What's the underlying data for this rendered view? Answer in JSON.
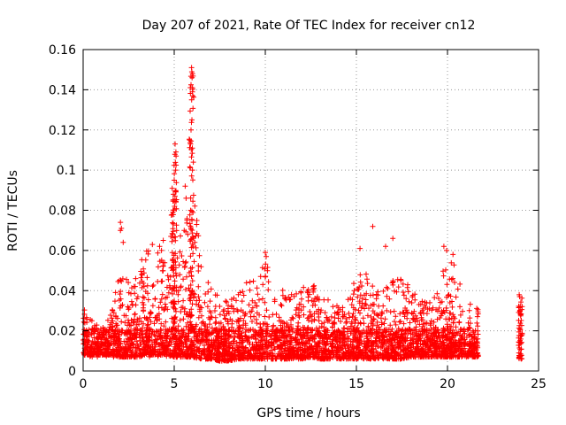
{
  "chart_data": {
    "type": "scatter",
    "title": "Day 207 of 2021, Rate Of TEC Index for receiver cn12",
    "xlabel": "GPS time / hours",
    "ylabel": "ROTI / TECUs",
    "xlim": [
      0,
      25
    ],
    "ylim": [
      0,
      0.16
    ],
    "grid": true,
    "marker": "+",
    "color": "#ff0000",
    "x_ticks": [
      "0",
      "5",
      "10",
      "15",
      "20",
      "25"
    ],
    "y_ticks": [
      "0",
      "0.02",
      "0.04",
      "0.06",
      "0.08",
      "0.1",
      "0.12",
      "0.14",
      "0.16"
    ],
    "x_tick_values": [
      0,
      5,
      10,
      15,
      20,
      25
    ],
    "y_tick_values": [
      0,
      0.02,
      0.04,
      0.06,
      0.08,
      0.1,
      0.12,
      0.14,
      0.16
    ],
    "envelope": {
      "x": [
        0,
        0.5,
        1,
        1.5,
        2,
        2.5,
        3,
        3.5,
        4,
        4.5,
        5,
        5.5,
        6,
        6.5,
        7,
        7.5,
        8,
        8.5,
        9,
        9.5,
        10,
        10.5,
        11,
        11.5,
        12,
        12.5,
        13,
        13.5,
        14,
        14.5,
        15,
        15.5,
        16,
        16.5,
        17,
        17.5,
        18,
        18.5,
        19,
        19.5,
        20,
        20.5,
        21,
        21.7
      ],
      "low": [
        0.008,
        0.008,
        0.008,
        0.008,
        0.007,
        0.007,
        0.007,
        0.008,
        0.008,
        0.008,
        0.007,
        0.007,
        0.007,
        0.006,
        0.006,
        0.005,
        0.005,
        0.006,
        0.006,
        0.006,
        0.006,
        0.006,
        0.006,
        0.006,
        0.006,
        0.007,
        0.006,
        0.006,
        0.006,
        0.006,
        0.006,
        0.006,
        0.006,
        0.006,
        0.006,
        0.006,
        0.007,
        0.007,
        0.007,
        0.007,
        0.007,
        0.007,
        0.007,
        0.007
      ],
      "high": [
        0.038,
        0.026,
        0.022,
        0.028,
        0.048,
        0.045,
        0.055,
        0.06,
        0.06,
        0.055,
        0.09,
        0.06,
        0.1,
        0.05,
        0.045,
        0.035,
        0.035,
        0.038,
        0.045,
        0.048,
        0.058,
        0.045,
        0.04,
        0.038,
        0.042,
        0.048,
        0.035,
        0.038,
        0.032,
        0.04,
        0.048,
        0.05,
        0.04,
        0.04,
        0.05,
        0.045,
        0.042,
        0.035,
        0.035,
        0.04,
        0.06,
        0.05,
        0.035,
        0.032
      ]
    },
    "notable_points": {
      "x": [
        5.95,
        5.98,
        6.0,
        6.02,
        5.92,
        5.97,
        6.05,
        6.0,
        5.05,
        5.1,
        5.08,
        5.0,
        4.95,
        5.02,
        5.6,
        5.65,
        5.7,
        5.55,
        5.75,
        2.05,
        2.1,
        2.2,
        2.05,
        15.9,
        15.2,
        16.6,
        17.0,
        19.8,
        19.95,
        20.3,
        10.0,
        10.05,
        3.8,
        4.2,
        4.3,
        4.4
      ],
      "y": [
        0.151,
        0.146,
        0.141,
        0.137,
        0.12,
        0.125,
        0.104,
        0.1,
        0.113,
        0.107,
        0.1,
        0.095,
        0.088,
        0.082,
        0.092,
        0.086,
        0.075,
        0.07,
        0.068,
        0.074,
        0.071,
        0.064,
        0.07,
        0.072,
        0.061,
        0.062,
        0.066,
        0.062,
        0.06,
        0.058,
        0.059,
        0.057,
        0.063,
        0.062,
        0.06,
        0.065
      ]
    },
    "late_segment": {
      "x_range": [
        23.9,
        24.1
      ],
      "low": 0.006,
      "high": 0.038
    }
  }
}
